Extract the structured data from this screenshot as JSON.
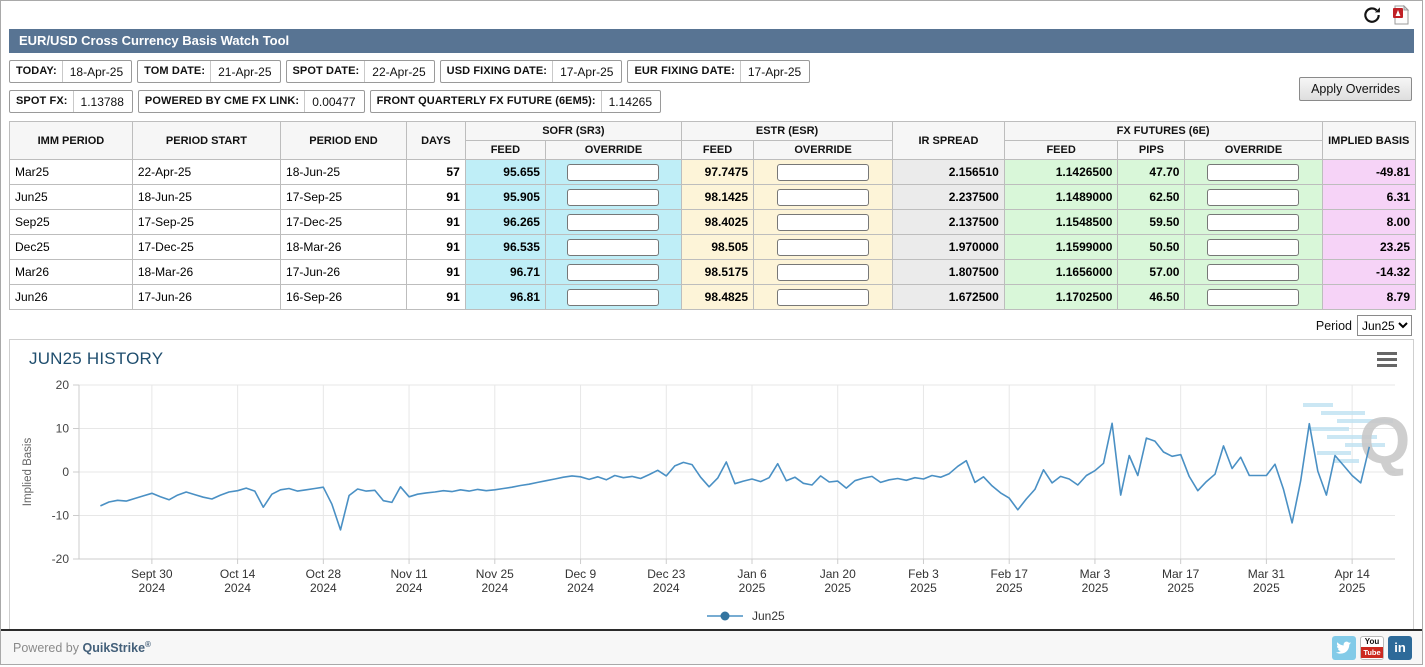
{
  "header": {
    "title": "EUR/USD Cross Currency Basis Watch Tool"
  },
  "toolbar_icons": {
    "refresh": "refresh-icon",
    "pdf": "pdf-export-icon"
  },
  "info_row1": [
    {
      "label": "TODAY:",
      "value": "18-Apr-25"
    },
    {
      "label": "TOM DATE:",
      "value": "21-Apr-25"
    },
    {
      "label": "SPOT DATE:",
      "value": "22-Apr-25"
    },
    {
      "label": "USD FIXING DATE:",
      "value": "17-Apr-25"
    },
    {
      "label": "EUR FIXING DATE:",
      "value": "17-Apr-25"
    }
  ],
  "info_row2": [
    {
      "label": "SPOT FX:",
      "value": "1.13788"
    },
    {
      "label": "POWERED BY CME FX LINK:",
      "value": "0.00477"
    },
    {
      "label": "FRONT QUARTERLY FX FUTURE (6EM5):",
      "value": "1.14265"
    }
  ],
  "apply_button_label": "Apply Overrides",
  "table": {
    "group_headers": {
      "imm_period": "IMM PERIOD",
      "period_start": "PERIOD START",
      "period_end": "PERIOD END",
      "days": "DAYS",
      "sofr": "SOFR (SR3)",
      "estr": "ESTR (ESR)",
      "ir_spread": "IR SPREAD",
      "fx_futures": "FX FUTURES (6E)",
      "implied_basis": "IMPLIED BASIS"
    },
    "sub_headers": {
      "feed": "FEED",
      "override": "OVERRIDE",
      "pips": "PIPS"
    },
    "rows": [
      {
        "period": "Mar25",
        "period_start": "22-Apr-25",
        "period_end": "18-Jun-25",
        "days": "57",
        "sofr_feed": "95.655",
        "estr_feed": "97.7475",
        "ir_spread": "2.156510",
        "fx_feed": "1.1426500",
        "fx_pips": "47.70",
        "implied_basis": "-49.81"
      },
      {
        "period": "Jun25",
        "period_start": "18-Jun-25",
        "period_end": "17-Sep-25",
        "days": "91",
        "sofr_feed": "95.905",
        "estr_feed": "98.1425",
        "ir_spread": "2.237500",
        "fx_feed": "1.1489000",
        "fx_pips": "62.50",
        "implied_basis": "6.31"
      },
      {
        "period": "Sep25",
        "period_start": "17-Sep-25",
        "period_end": "17-Dec-25",
        "days": "91",
        "sofr_feed": "96.265",
        "estr_feed": "98.4025",
        "ir_spread": "2.137500",
        "fx_feed": "1.1548500",
        "fx_pips": "59.50",
        "implied_basis": "8.00"
      },
      {
        "period": "Dec25",
        "period_start": "17-Dec-25",
        "period_end": "18-Mar-26",
        "days": "91",
        "sofr_feed": "96.535",
        "estr_feed": "98.505",
        "ir_spread": "1.970000",
        "fx_feed": "1.1599000",
        "fx_pips": "50.50",
        "implied_basis": "23.25"
      },
      {
        "period": "Mar26",
        "period_start": "18-Mar-26",
        "period_end": "17-Jun-26",
        "days": "91",
        "sofr_feed": "96.71",
        "estr_feed": "98.5175",
        "ir_spread": "1.807500",
        "fx_feed": "1.1656000",
        "fx_pips": "57.00",
        "implied_basis": "-14.32"
      },
      {
        "period": "Jun26",
        "period_start": "17-Jun-26",
        "period_end": "16-Sep-26",
        "days": "91",
        "sofr_feed": "96.81",
        "estr_feed": "98.4825",
        "ir_spread": "1.672500",
        "fx_feed": "1.1702500",
        "fx_pips": "46.50",
        "implied_basis": "8.79"
      }
    ]
  },
  "period_selector": {
    "label": "Period",
    "value": "Jun25"
  },
  "chart_data": {
    "type": "line",
    "title": "JUN25 HISTORY",
    "ylabel": "Implied Basis",
    "series_name": "Jun25",
    "ylim": [
      -20,
      20
    ],
    "yticks": [
      20,
      10,
      0,
      -10,
      -20
    ],
    "grid": true,
    "legend_position": "bottom-center",
    "line_color": "#4a90c4",
    "xticks": [
      {
        "l1": "Sept 30",
        "l2": "2024",
        "i": 6
      },
      {
        "l1": "Oct 14",
        "l2": "2024",
        "i": 16
      },
      {
        "l1": "Oct 28",
        "l2": "2024",
        "i": 26
      },
      {
        "l1": "Nov 11",
        "l2": "2024",
        "i": 36
      },
      {
        "l1": "Nov 25",
        "l2": "2024",
        "i": 46
      },
      {
        "l1": "Dec 9",
        "l2": "2024",
        "i": 56
      },
      {
        "l1": "Dec 23",
        "l2": "2024",
        "i": 66
      },
      {
        "l1": "Jan 6",
        "l2": "2025",
        "i": 76
      },
      {
        "l1": "Jan 20",
        "l2": "2025",
        "i": 86
      },
      {
        "l1": "Feb 3",
        "l2": "2025",
        "i": 96
      },
      {
        "l1": "Feb 17",
        "l2": "2025",
        "i": 106
      },
      {
        "l1": "Mar 3",
        "l2": "2025",
        "i": 116
      },
      {
        "l1": "Mar 17",
        "l2": "2025",
        "i": 126
      },
      {
        "l1": "Mar 31",
        "l2": "2025",
        "i": 136
      },
      {
        "l1": "Apr 14",
        "l2": "2025",
        "i": 146
      }
    ],
    "values": [
      -7.8,
      -6.9,
      -6.5,
      -6.7,
      -6.1,
      -5.5,
      -4.9,
      -5.7,
      -6.4,
      -5.3,
      -4.6,
      -5.2,
      -5.8,
      -6.2,
      -5.3,
      -4.6,
      -4.3,
      -3.7,
      -4.4,
      -8.1,
      -5.1,
      -4.1,
      -3.8,
      -4.4,
      -4.1,
      -3.8,
      -3.5,
      -7.4,
      -13.3,
      -5.4,
      -3.9,
      -4.4,
      -4.2,
      -6.6,
      -7.0,
      -3.4,
      -5.7,
      -5.1,
      -4.8,
      -4.6,
      -4.3,
      -4.5,
      -4.1,
      -4.4,
      -4.0,
      -4.3,
      -4.1,
      -3.8,
      -3.5,
      -3.1,
      -2.8,
      -2.4,
      -2.0,
      -1.6,
      -1.2,
      -0.9,
      -1.1,
      -1.7,
      -1.1,
      -1.8,
      -0.8,
      -1.3,
      -1.0,
      -1.5,
      -0.6,
      0.4,
      -0.9,
      1.4,
      2.2,
      1.7,
      -1.2,
      -3.4,
      -1.4,
      2.3,
      -2.7,
      -2.1,
      -1.6,
      -2.2,
      -1.3,
      1.9,
      -2.0,
      -1.2,
      -2.6,
      -3.0,
      -0.9,
      -2.3,
      -2.1,
      -3.7,
      -2.0,
      -1.4,
      -1.0,
      -2.4,
      -1.8,
      -1.5,
      -1.9,
      -1.3,
      -1.6,
      -0.8,
      -1.2,
      -0.4,
      1.3,
      2.6,
      -2.4,
      -1.1,
      -3.2,
      -4.8,
      -6.0,
      -8.7,
      -6.2,
      -4.0,
      0.5,
      -2.5,
      -1.0,
      -1.6,
      -3.0,
      -0.8,
      0.3,
      2.0,
      11.2,
      -5.3,
      3.8,
      -0.8,
      7.8,
      7.1,
      4.6,
      3.6,
      4.0,
      -1.0,
      -4.3,
      -2.2,
      -0.5,
      6.0,
      0.8,
      3.4,
      -0.8,
      -0.8,
      -0.8,
      1.8,
      -4.0,
      -11.7,
      -2.0,
      11.1,
      0.2,
      -5.3,
      3.8,
      1.5,
      -0.8,
      -2.5,
      5.8
    ]
  },
  "footer": {
    "powered_by": "Powered by",
    "brand": "QuikStrike",
    "registered": "®",
    "social_icons": [
      "twitter-icon",
      "youtube-icon",
      "linkedin-icon"
    ]
  },
  "colors": {
    "titlebar": "#587493",
    "sofr_bg": "#bfeef7",
    "estr_bg": "#fdf4d8",
    "spread_bg": "#ebebeb",
    "fx_bg": "#d9f7d9",
    "implied_bg": "#f6d3f7",
    "chart_line": "#4a90c4",
    "chart_title": "#1f4e6e"
  }
}
